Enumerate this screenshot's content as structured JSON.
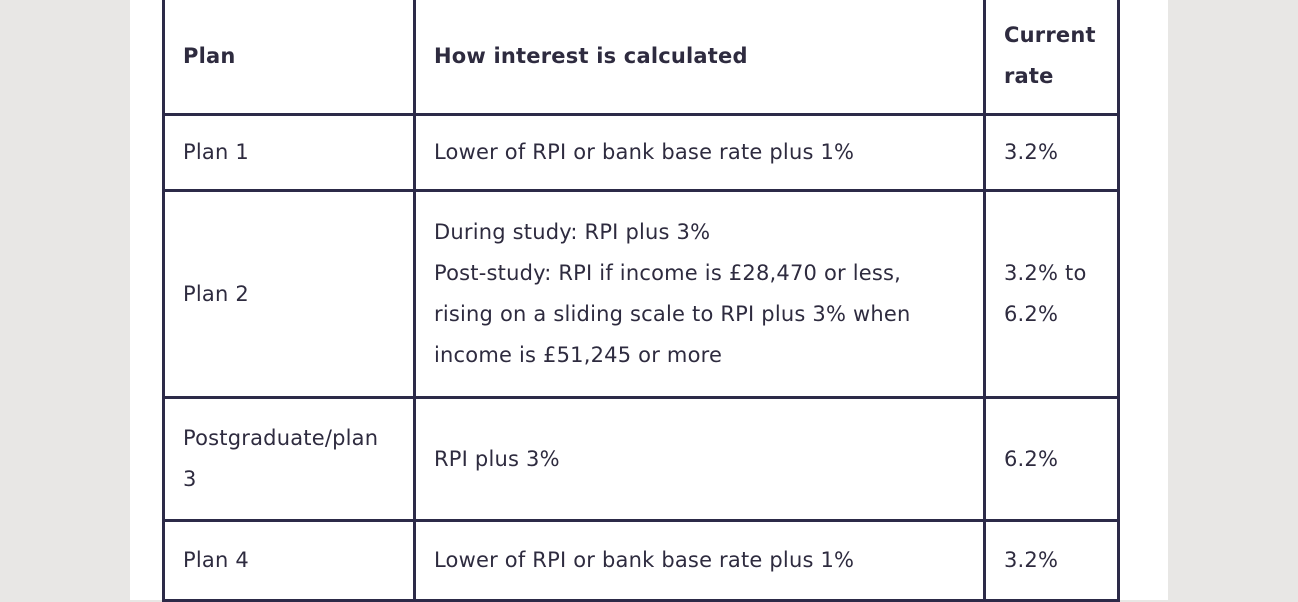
{
  "table": {
    "headers": {
      "plan": "Plan",
      "how": "How interest is calculated",
      "rate": "Current rate"
    },
    "rows": [
      {
        "plan": "Plan 1",
        "how": [
          "Lower of RPI or bank base rate plus 1%"
        ],
        "rate": "3.2%"
      },
      {
        "plan": "Plan 2",
        "how": [
          "During study: RPI plus 3%",
          "Post-study: RPI if income is £28,470 or less, rising on a sliding scale to RPI plus 3% when income is £51,245 or more"
        ],
        "rate": "3.2% to 6.2%"
      },
      {
        "plan": "Postgraduate/plan 3",
        "how": [
          "RPI plus 3%"
        ],
        "rate": "6.2%"
      },
      {
        "plan": "Plan 4",
        "how": [
          "Lower of RPI or bank base rate plus 1%"
        ],
        "rate": "3.2%"
      }
    ]
  }
}
